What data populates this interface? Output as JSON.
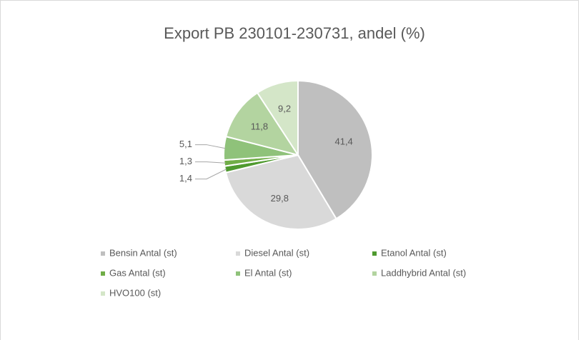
{
  "chart_data": {
    "type": "pie",
    "title": "Export PB 230101-230731, andel (%)",
    "categories": [
      "Bensin Antal (st)",
      "Diesel Antal (st)",
      "Etanol Antal (st)",
      "Gas Antal (st)",
      "El Antal (st)",
      "Laddhybrid Antal (st)",
      "HVO100 (st)"
    ],
    "values": [
      41.4,
      29.8,
      1.4,
      1.3,
      5.1,
      11.8,
      9.2
    ],
    "value_labels": [
      "41,4",
      "29,8",
      "1,4",
      "1,3",
      "5,1",
      "11,8",
      "9,2"
    ],
    "colors": [
      "#bfbfbf",
      "#d9d9d9",
      "#4f9a2f",
      "#70ad47",
      "#8fc27a",
      "#b3d4a0",
      "#d4e6c8"
    ],
    "legend": "bottom"
  }
}
